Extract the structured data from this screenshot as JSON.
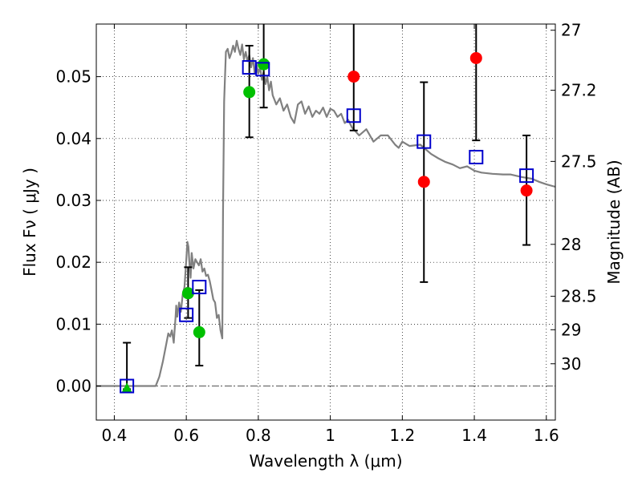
{
  "chart_data": {
    "type": "scatter",
    "xlabel": "Wavelength  λ (μm)",
    "ylabel": "Flux  Fν  ( μJy )",
    "ylabel_right": "Magnitude (AB)",
    "xlim": [
      0.35,
      1.625
    ],
    "ylim": [
      -0.0055,
      0.0585
    ],
    "grid": true,
    "x_ticks": [
      0.4,
      0.6,
      0.8,
      1.0,
      1.2,
      1.4,
      1.6
    ],
    "x_tick_labels": [
      "0.4",
      "0.6",
      "0.8",
      "1",
      "1.2",
      "1.4",
      "1.6"
    ],
    "y_ticks": [
      0.0,
      0.01,
      0.02,
      0.03,
      0.04,
      0.05
    ],
    "y_tick_labels": [
      "0.00",
      "0.01",
      "0.02",
      "0.03",
      "0.04",
      "0.05"
    ],
    "right_ticks": [
      {
        "label": "27",
        "flux": 0.0575
      },
      {
        "label": "27.2",
        "flux": 0.0478
      },
      {
        "label": "27.5",
        "flux": 0.0363
      },
      {
        "label": "28",
        "flux": 0.0229
      },
      {
        "label": "28.5",
        "flux": 0.0145
      },
      {
        "label": "29",
        "flux": 0.0091
      },
      {
        "label": "30",
        "flux": 0.0036
      }
    ],
    "colors": {
      "model": "#808080",
      "green": "#00c000",
      "red": "#ff0000",
      "blue": "#0000cc",
      "errorbar": "#000000"
    },
    "model_spectrum": {
      "x": [
        0.35,
        0.4,
        0.45,
        0.5,
        0.515,
        0.525,
        0.535,
        0.545,
        0.55,
        0.555,
        0.56,
        0.565,
        0.57,
        0.572,
        0.575,
        0.58,
        0.585,
        0.59,
        0.595,
        0.6,
        0.603,
        0.606,
        0.609,
        0.612,
        0.615,
        0.62,
        0.625,
        0.63,
        0.635,
        0.64,
        0.645,
        0.65,
        0.655,
        0.66,
        0.665,
        0.67,
        0.675,
        0.68,
        0.685,
        0.69,
        0.695,
        0.7,
        0.702,
        0.705,
        0.71,
        0.715,
        0.72,
        0.725,
        0.73,
        0.735,
        0.74,
        0.745,
        0.75,
        0.755,
        0.76,
        0.765,
        0.77,
        0.775,
        0.78,
        0.785,
        0.79,
        0.795,
        0.8,
        0.805,
        0.81,
        0.815,
        0.82,
        0.825,
        0.83,
        0.835,
        0.84,
        0.85,
        0.86,
        0.87,
        0.88,
        0.89,
        0.9,
        0.91,
        0.92,
        0.93,
        0.94,
        0.95,
        0.96,
        0.97,
        0.98,
        0.99,
        1.0,
        1.01,
        1.02,
        1.03,
        1.04,
        1.05,
        1.06,
        1.08,
        1.1,
        1.12,
        1.14,
        1.16,
        1.18,
        1.19,
        1.2,
        1.22,
        1.25,
        1.28,
        1.3,
        1.32,
        1.34,
        1.36,
        1.38,
        1.4,
        1.42,
        1.45,
        1.48,
        1.5,
        1.53,
        1.56,
        1.58,
        1.6,
        1.625
      ],
      "y": [
        0.0,
        0.0,
        0.0,
        0.0,
        0.0,
        0.0015,
        0.004,
        0.007,
        0.0085,
        0.008,
        0.009,
        0.007,
        0.011,
        0.013,
        0.0112,
        0.0135,
        0.012,
        0.0148,
        0.016,
        0.0205,
        0.0233,
        0.0225,
        0.0195,
        0.0175,
        0.0215,
        0.019,
        0.0205,
        0.02,
        0.0195,
        0.0205,
        0.0185,
        0.019,
        0.0178,
        0.018,
        0.017,
        0.0155,
        0.014,
        0.0135,
        0.011,
        0.0115,
        0.009,
        0.0077,
        0.028,
        0.046,
        0.054,
        0.0545,
        0.053,
        0.0538,
        0.055,
        0.054,
        0.0558,
        0.0545,
        0.0535,
        0.0552,
        0.0528,
        0.054,
        0.0525,
        0.0535,
        0.0515,
        0.053,
        0.0505,
        0.052,
        0.0505,
        0.0515,
        0.0495,
        0.0508,
        0.0488,
        0.05,
        0.0478,
        0.0492,
        0.047,
        0.0455,
        0.0465,
        0.0445,
        0.0455,
        0.0435,
        0.0425,
        0.0455,
        0.046,
        0.044,
        0.0452,
        0.0435,
        0.0445,
        0.044,
        0.045,
        0.0435,
        0.0448,
        0.0445,
        0.0435,
        0.044,
        0.0425,
        0.043,
        0.0418,
        0.0405,
        0.0415,
        0.0395,
        0.0405,
        0.0405,
        0.039,
        0.0385,
        0.0395,
        0.0388,
        0.039,
        0.0375,
        0.0368,
        0.0362,
        0.0358,
        0.0352,
        0.0355,
        0.0348,
        0.0345,
        0.0343,
        0.0342,
        0.0342,
        0.0338,
        0.0335,
        0.033,
        0.0326,
        0.0322
      ]
    },
    "green_points": [
      {
        "x": 0.605,
        "y": 0.015
      },
      {
        "x": 0.636,
        "y": 0.0087
      },
      {
        "x": 0.775,
        "y": 0.0475
      },
      {
        "x": 0.815,
        "y": 0.052
      }
    ],
    "green_triangle": [
      {
        "x": 0.435,
        "y": -0.0005
      }
    ],
    "red_points": [
      {
        "x": 1.065,
        "y": 0.05
      },
      {
        "x": 1.26,
        "y": 0.033
      },
      {
        "x": 1.405,
        "y": 0.053
      },
      {
        "x": 1.545,
        "y": 0.0316
      }
    ],
    "blue_squares": [
      {
        "x": 0.435,
        "y": 0.0
      },
      {
        "x": 0.6,
        "y": 0.0115
      },
      {
        "x": 0.636,
        "y": 0.016
      },
      {
        "x": 0.775,
        "y": 0.0515
      },
      {
        "x": 0.812,
        "y": 0.0512
      },
      {
        "x": 1.065,
        "y": 0.0437
      },
      {
        "x": 1.26,
        "y": 0.0395
      },
      {
        "x": 1.405,
        "y": 0.037
      },
      {
        "x": 1.545,
        "y": 0.034
      }
    ],
    "error_bars": [
      {
        "x": 0.435,
        "y_low": -0.0005,
        "y_high": 0.007
      },
      {
        "x": 0.605,
        "y_low": 0.011,
        "y_high": 0.0192
      },
      {
        "x": 0.636,
        "y_low": 0.0033,
        "y_high": 0.0155
      },
      {
        "x": 0.775,
        "y_low": 0.0402,
        "y_high": 0.055
      },
      {
        "x": 0.815,
        "y_low": 0.045,
        "y_high": 0.0585
      },
      {
        "x": 1.065,
        "y_low": 0.0413,
        "y_high": 0.0585
      },
      {
        "x": 1.26,
        "y_low": 0.0168,
        "y_high": 0.0491
      },
      {
        "x": 1.405,
        "y_low": 0.0397,
        "y_high": 0.0585
      },
      {
        "x": 1.545,
        "y_low": 0.0228,
        "y_high": 0.0405
      }
    ]
  }
}
